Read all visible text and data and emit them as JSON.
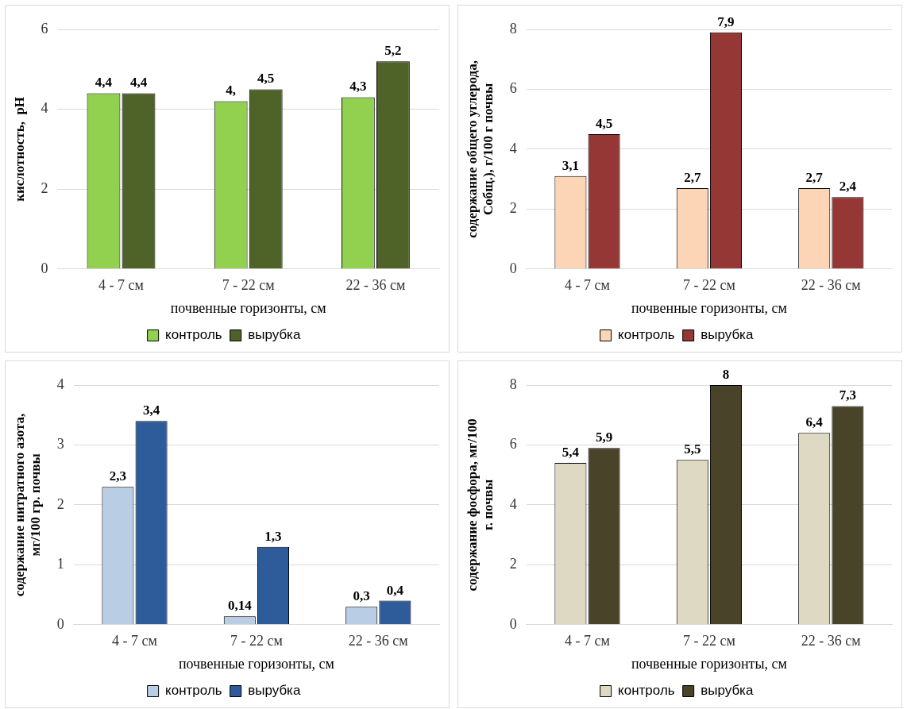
{
  "chart_data": [
    {
      "type": "bar",
      "categories": [
        "4 - 7 см",
        "7 - 22 см",
        "22 - 36 см"
      ],
      "xlabel": "почвенные горизонты, см",
      "ylabel": "кислотность,  pH",
      "ylim": [
        0,
        6
      ],
      "yticks": [
        0,
        2,
        4,
        6
      ],
      "grid": "y",
      "legend": "bottom",
      "series": [
        {
          "name": "контроль",
          "color": "#92d050",
          "values": [
            4.4,
            4.2,
            4.3
          ],
          "value_labels": [
            "4,4",
            "4,",
            "4,3"
          ]
        },
        {
          "name": "вырубка",
          "color": "#4f6228",
          "values": [
            4.4,
            4.5,
            5.2
          ],
          "value_labels": [
            "4,4",
            "4,5",
            "5,2"
          ]
        }
      ]
    },
    {
      "type": "bar",
      "categories": [
        "4 - 7 см",
        "7 - 22 см",
        "22 - 36 см"
      ],
      "xlabel": "почвенные горизонты, см",
      "ylabel": "содержание общего углерода, Cобщ.), г/100 г почвы",
      "ylim": [
        0,
        8
      ],
      "yticks": [
        0,
        2,
        4,
        6,
        8
      ],
      "grid": "y",
      "legend": "bottom",
      "series": [
        {
          "name": "контроль",
          "color": "#fbd5b5",
          "values": [
            3.1,
            2.7,
            2.7
          ],
          "value_labels": [
            "3,1",
            "2,7",
            "2,7"
          ]
        },
        {
          "name": "вырубка",
          "color": "#953735",
          "values": [
            4.5,
            7.9,
            2.4
          ],
          "value_labels": [
            "4,5",
            "7,9",
            "2,4"
          ]
        }
      ]
    },
    {
      "type": "bar",
      "categories": [
        "4 - 7 см",
        "7 - 22 см",
        "22 - 36 см"
      ],
      "xlabel": "почвенные горизонты, см",
      "ylabel": "содержание нитратного азота,  мг/100 гр. почвы",
      "ylim": [
        0,
        4
      ],
      "yticks": [
        0,
        1,
        2,
        3,
        4
      ],
      "grid": "y",
      "legend": "bottom",
      "series": [
        {
          "name": "контроль",
          "color": "#b9cde5",
          "values": [
            2.3,
            0.14,
            0.3
          ],
          "value_labels": [
            "2,3",
            "0,14",
            "0,3"
          ]
        },
        {
          "name": "вырубка",
          "color": "#2e5c9a",
          "values": [
            3.4,
            1.3,
            0.4
          ],
          "value_labels": [
            "3,4",
            "1,3",
            "0,4"
          ]
        }
      ]
    },
    {
      "type": "bar",
      "categories": [
        "4 - 7 см",
        "7 - 22 см",
        "22 - 36 см"
      ],
      "xlabel": "почвенные горизонты, см",
      "ylabel": "содержание фосфора, мг/100 г. почвы",
      "ylim": [
        0,
        8
      ],
      "yticks": [
        0,
        2,
        4,
        6,
        8
      ],
      "grid": "y",
      "legend": "bottom",
      "series": [
        {
          "name": "контроль",
          "color": "#ddd9c3",
          "values": [
            5.4,
            5.5,
            6.4
          ],
          "value_labels": [
            "5,4",
            "5,5",
            "6,4"
          ]
        },
        {
          "name": "вырубка",
          "color": "#494429",
          "values": [
            5.9,
            8,
            7.3
          ],
          "value_labels": [
            "5,9",
            "8",
            "7,3"
          ]
        }
      ]
    }
  ]
}
